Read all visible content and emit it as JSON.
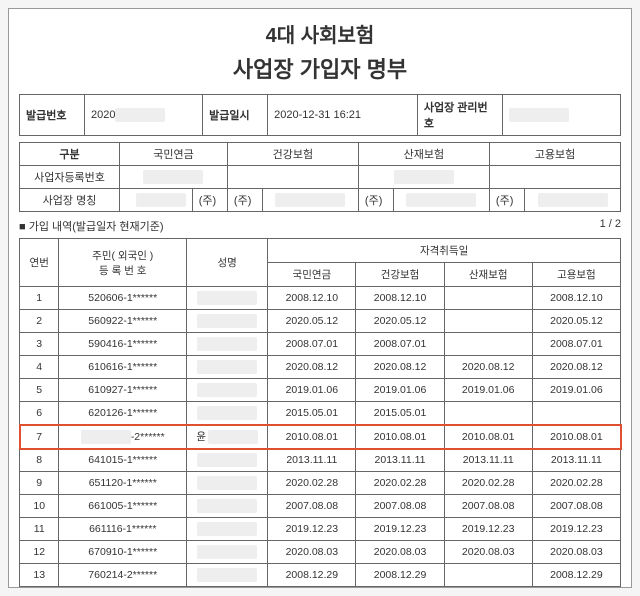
{
  "title1": "4대 사회보험",
  "title2": "사업장 가입자 명부",
  "meta": {
    "issueNoLabel": "발급번호",
    "issueNoVal": "2020",
    "issueDateLabel": "발급일시",
    "issueDateVal": "2020-12-31 16:21",
    "mgmtNoLabel": "사업장 관리번호",
    "mgmtNoVal": ""
  },
  "cat": {
    "gubun": "구분",
    "cols": [
      "국민연금",
      "건강보험",
      "산재보험",
      "고용보험"
    ],
    "row1Label": "사업자등록번호",
    "row2Label": "사업장 명칭",
    "juSuffix": "(주)"
  },
  "sectionLabel": "■ 가입 내역(발급일자 현재기준)",
  "pageInfo": "1   /   2",
  "table": {
    "headers": {
      "seq": "연번",
      "id": "주민( 외국인 )\n등 록 번 호",
      "name": "성명",
      "acq": "자격취득일",
      "acqCols": [
        "국민연금",
        "건강보험",
        "산재보험",
        "고용보험"
      ]
    },
    "rows": [
      {
        "seq": "1",
        "id": "520606-1******",
        "name": "",
        "d": [
          "2008.12.10",
          "2008.12.10",
          "",
          "2008.12.10"
        ],
        "hl": false
      },
      {
        "seq": "2",
        "id": "560922-1******",
        "name": "",
        "d": [
          "2020.05.12",
          "2020.05.12",
          "",
          "2020.05.12"
        ],
        "hl": false
      },
      {
        "seq": "3",
        "id": "590416-1******",
        "name": "",
        "d": [
          "2008.07.01",
          "2008.07.01",
          "",
          "2008.07.01"
        ],
        "hl": false
      },
      {
        "seq": "4",
        "id": "610616-1******",
        "name": "",
        "d": [
          "2020.08.12",
          "2020.08.12",
          "2020.08.12",
          "2020.08.12"
        ],
        "hl": false
      },
      {
        "seq": "5",
        "id": "610927-1******",
        "name": "",
        "d": [
          "2019.01.06",
          "2019.01.06",
          "2019.01.06",
          "2019.01.06"
        ],
        "hl": false
      },
      {
        "seq": "6",
        "id": "620126-1******",
        "name": "",
        "d": [
          "2015.05.01",
          "2015.05.01",
          "",
          ""
        ],
        "hl": false
      },
      {
        "seq": "7",
        "id": "-2******",
        "name": "윤",
        "d": [
          "2010.08.01",
          "2010.08.01",
          "2010.08.01",
          "2010.08.01"
        ],
        "hl": true
      },
      {
        "seq": "8",
        "id": "641015-1******",
        "name": "",
        "d": [
          "2013.11.11",
          "2013.11.11",
          "2013.11.11",
          "2013.11.11"
        ],
        "hl": false
      },
      {
        "seq": "9",
        "id": "651120-1******",
        "name": "",
        "d": [
          "2020.02.28",
          "2020.02.28",
          "2020.02.28",
          "2020.02.28"
        ],
        "hl": false
      },
      {
        "seq": "10",
        "id": "661005-1******",
        "name": "",
        "d": [
          "2007.08.08",
          "2007.08.08",
          "2007.08.08",
          "2007.08.08"
        ],
        "hl": false
      },
      {
        "seq": "11",
        "id": "661116-1******",
        "name": "",
        "d": [
          "2019.12.23",
          "2019.12.23",
          "2019.12.23",
          "2019.12.23"
        ],
        "hl": false
      },
      {
        "seq": "12",
        "id": "670910-1******",
        "name": "",
        "d": [
          "2020.08.03",
          "2020.08.03",
          "2020.08.03",
          "2020.08.03"
        ],
        "hl": false
      },
      {
        "seq": "13",
        "id": "760214-2******",
        "name": "",
        "d": [
          "2008.12.29",
          "2008.12.29",
          "",
          "2008.12.29"
        ],
        "hl": false
      }
    ]
  }
}
